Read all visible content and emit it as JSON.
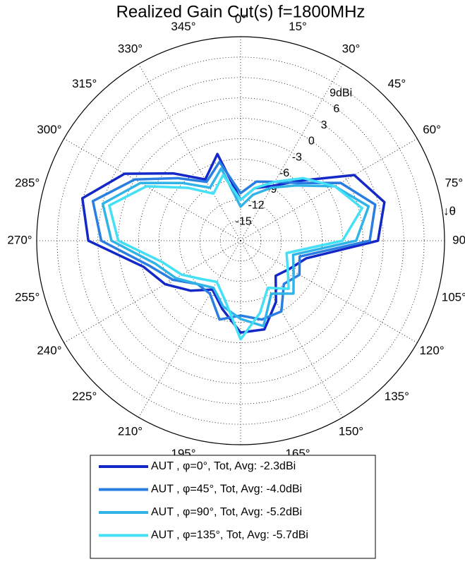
{
  "chart_data": {
    "type": "polar",
    "title": "Realized Gain Cut(s) f=1800MHz",
    "theta_direction": "clockwise",
    "theta_zero": "top",
    "theta_axis_label": "↓θ",
    "theta": [
      0,
      15,
      30,
      45,
      60,
      75,
      90,
      105,
      120,
      135,
      150,
      165,
      180,
      195,
      210,
      225,
      240,
      255,
      270,
      285,
      300,
      315,
      330,
      345
    ],
    "thetaticks": [
      {
        "value": 0,
        "label": "0°"
      },
      {
        "value": 15,
        "label": "15°"
      },
      {
        "value": 30,
        "label": "30°"
      },
      {
        "value": 45,
        "label": "45°"
      },
      {
        "value": 60,
        "label": "60°"
      },
      {
        "value": 75,
        "label": "75°"
      },
      {
        "value": 90,
        "label": "90°"
      },
      {
        "value": 105,
        "label": "105°"
      },
      {
        "value": 120,
        "label": "120°"
      },
      {
        "value": 135,
        "label": "135°"
      },
      {
        "value": 150,
        "label": "150°"
      },
      {
        "value": 165,
        "label": "165°"
      },
      {
        "value": 180,
        "label": "180°"
      },
      {
        "value": 195,
        "label": "195°"
      },
      {
        "value": 210,
        "label": "210°"
      },
      {
        "value": 225,
        "label": "225°"
      },
      {
        "value": 240,
        "label": "240°"
      },
      {
        "value": 255,
        "label": "255°"
      },
      {
        "value": 270,
        "label": "270°"
      },
      {
        "value": 285,
        "label": "285°"
      },
      {
        "value": 300,
        "label": "300°"
      },
      {
        "value": 315,
        "label": "315°"
      },
      {
        "value": 330,
        "label": "330°"
      },
      {
        "value": 345,
        "label": "345°"
      }
    ],
    "rlim": [
      -18,
      12
    ],
    "rticks": [
      -15,
      -12,
      -9,
      -6,
      -3,
      0,
      3,
      6,
      {
        "value": 9,
        "label": "9dBi"
      }
    ],
    "grid": true,
    "series": [
      {
        "name": "AUT , φ=0°, Tot, Avg: -2.3dBi",
        "color": "#1428c8",
        "values": [
          -12,
          -10,
          -8.7,
          -5.5,
          1.3,
          3.9,
          2.2,
          -8,
          -9.7,
          -10.7,
          -7.6,
          -4.5,
          -4.5,
          -7.6,
          -9.7,
          -7.6,
          -5.2,
          -3.2,
          4.4,
          6.1,
          1.7,
          -4,
          -7.6,
          -4.8
        ]
      },
      {
        "name": "AUT , φ=45°, Tot, Avg: -4.0dBi",
        "color": "#2a7de1",
        "values": [
          -11,
          -9,
          -8,
          -6,
          -1,
          2.5,
          1,
          -9,
          -8,
          -9,
          -6,
          -6,
          -7,
          -6,
          -9,
          -9,
          -6.5,
          -4,
          2.5,
          4.5,
          0,
          -5,
          -8,
          -6
        ]
      },
      {
        "name": "AUT , φ=90°, Tot, Avg: -5.2dBi",
        "color": "#30b4e8",
        "values": [
          -13,
          -11,
          -9,
          -6.5,
          -2,
          1.5,
          -1,
          -10,
          -9,
          -7,
          -9,
          -5,
          -6.5,
          -8,
          -10,
          -9,
          -7,
          -5,
          1,
          3,
          -1,
          -6,
          -9,
          -7
        ]
      },
      {
        "name": "AUT , φ=135°, Tot, Avg: -5.7dBi",
        "color": "#44e0f6",
        "values": [
          -12,
          -10,
          -8,
          -5,
          -2,
          0.5,
          -3,
          -11,
          -10,
          -8,
          -10,
          -7,
          -3.5,
          -9,
          -11,
          -10,
          -8,
          -6,
          0,
          2,
          -2,
          -7,
          -10,
          -8
        ]
      }
    ]
  }
}
